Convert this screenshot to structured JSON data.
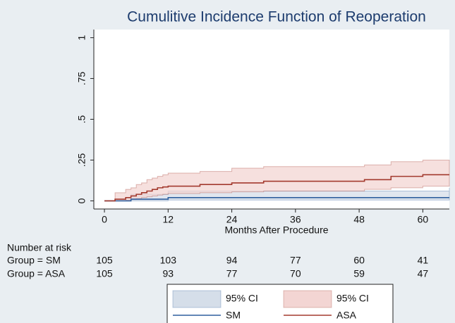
{
  "chart_data": {
    "type": "step",
    "title": "Cumulitive Incidence Function of Reoperation",
    "x_label": "Months After Procedure",
    "xlim": [
      -2,
      65
    ],
    "xticks": [
      0,
      12,
      24,
      36,
      48,
      60
    ],
    "ylim": [
      -0.05,
      1.05
    ],
    "yticks": [
      0,
      {
        "value": 0.25,
        "label": ".25"
      },
      {
        "value": 0.5,
        "label": ".5"
      },
      {
        "value": 0.75,
        "label": ".75"
      },
      1
    ],
    "series": [
      {
        "name": "SM",
        "color": "#2f5f9e",
        "ci_label": "95% CI",
        "ci_color": "#d5dee9",
        "x": [
          0,
          5,
          12,
          65
        ],
        "values": [
          0,
          0.01,
          0.02,
          0.02
        ],
        "ci_lower": [
          0,
          0,
          0.005,
          0.005
        ],
        "ci_upper": [
          0,
          0.04,
          0.06,
          0.08
        ]
      },
      {
        "name": "ASA",
        "color": "#a33a2e",
        "ci_label": "95% CI",
        "ci_color": "#f3d5d3",
        "x": [
          0,
          2,
          4,
          5,
          6,
          7,
          8,
          9,
          10,
          11,
          12,
          18,
          24,
          30,
          49,
          54,
          60,
          65
        ],
        "values": [
          0,
          0.01,
          0.02,
          0.03,
          0.04,
          0.05,
          0.06,
          0.07,
          0.08,
          0.085,
          0.09,
          0.1,
          0.11,
          0.12,
          0.13,
          0.15,
          0.16,
          0.16
        ],
        "ci_lower": [
          0,
          0,
          0.003,
          0.008,
          0.013,
          0.02,
          0.025,
          0.03,
          0.035,
          0.04,
          0.045,
          0.05,
          0.055,
          0.06,
          0.07,
          0.08,
          0.09,
          0.09
        ],
        "ci_upper": [
          0,
          0.05,
          0.07,
          0.08,
          0.1,
          0.11,
          0.13,
          0.14,
          0.15,
          0.16,
          0.17,
          0.18,
          0.2,
          0.21,
          0.22,
          0.24,
          0.25,
          0.25
        ]
      }
    ],
    "risk_table": {
      "title": "Number at risk",
      "rows": [
        {
          "label": "Group = SM",
          "values": [
            105,
            103,
            94,
            77,
            60,
            41
          ]
        },
        {
          "label": "Group = ASA",
          "values": [
            105,
            93,
            77,
            70,
            59,
            47
          ]
        }
      ]
    }
  }
}
